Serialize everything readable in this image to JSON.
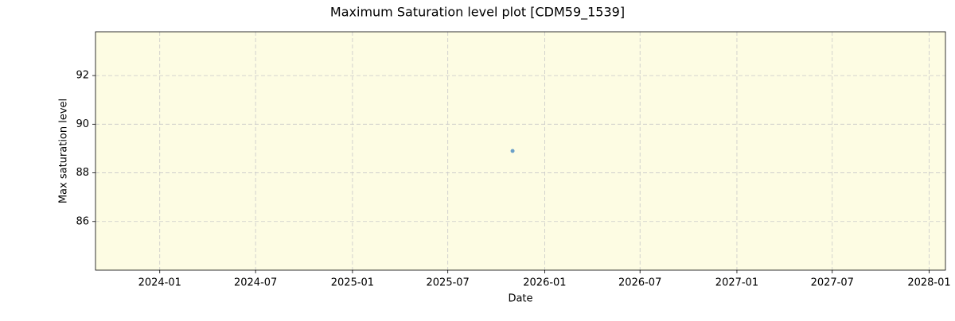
{
  "chart_data": {
    "type": "scatter",
    "title": "Maximum Saturation level plot [CDM59_1539]",
    "x_label": "Date",
    "y_label": "Max saturation level",
    "x": [
      "2025-11"
    ],
    "values": [
      88.9
    ],
    "color": "#6a9fc8",
    "xlim": [
      "2023-09",
      "2028-02"
    ],
    "xticks": [
      "2024-01",
      "2024-07",
      "2025-01",
      "2025-07",
      "2026-01",
      "2026-07",
      "2027-01",
      "2027-07",
      "2028-01"
    ],
    "ylim": [
      84,
      93.8
    ],
    "yticks": [
      86,
      88,
      90,
      92
    ],
    "grid": true,
    "background": "#fdfce3"
  }
}
